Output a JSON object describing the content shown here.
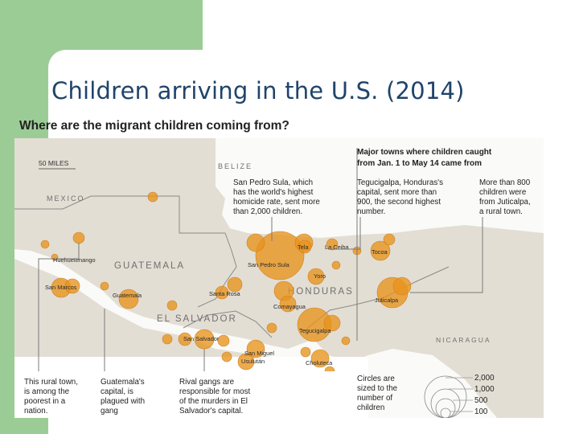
{
  "slide": {
    "title": "Children arriving in the U.S. (2014)"
  },
  "figure": {
    "heading": "Where are the migrant children coming from?",
    "scale_label": "50 MILES",
    "countries": {
      "belize": "BELIZE",
      "mexico": "MEXICO",
      "guatemala": "GUATEMALA",
      "honduras": "HONDURAS",
      "el_salvador": "EL SALVADOR",
      "nicaragua": "NICARAGUA"
    },
    "cities": {
      "huehuetenango": "Huehuetenango",
      "san_marcos": "San Marcos",
      "guatemala": "Guatemala",
      "santa_rosa": "Santa Rosa",
      "san_salvador": "San Salvador",
      "usulutan": "Usulután",
      "san_miguel": "San Miguel",
      "tela": "Tela",
      "la_ceiba": "La Ceiba",
      "san_pedro_sula": "San Pedro Sula",
      "yoro": "Yoro",
      "comayagua": "Comayagua",
      "tegucigalpa": "Tegucigalpa",
      "choluteca": "Choluteca",
      "tocoa": "Tocoa",
      "juticalpa": "Juticalpa"
    },
    "major_towns_heading": [
      "Major towns where children caught",
      "from Jan. 1 to May 14 came from"
    ],
    "annotations": {
      "san_pedro_sula": [
        "San Pedro Sula, which",
        "has the world's highest",
        "homicide rate, sent more",
        "than 2,000 children."
      ],
      "tegucigalpa": [
        "Tegucigalpa, Honduras's",
        "capital, sent more than",
        "900, the second highest",
        "number."
      ],
      "juticalpa": [
        "More than 800",
        "children were",
        "from Juticalpa,",
        "a rural town."
      ],
      "huehuetenango": [
        "This rural town,",
        "is among the",
        "poorest in a",
        "nation."
      ],
      "guatemala": [
        "Guatemala's",
        "capital, is",
        "plagued with",
        "gang"
      ],
      "san_salvador": [
        "Rival gangs are",
        "responsible for most",
        "of the murders in El",
        "Salvador's capital."
      ]
    },
    "legend": {
      "caption": [
        "Circles are",
        "sized to the",
        "number of",
        "children"
      ],
      "sizes": [
        "2,000",
        "1,000",
        "500",
        "100"
      ]
    },
    "colors": {
      "bubble": "#e8931c",
      "land": "#e3ded4",
      "sea": "#ffffff",
      "slide_accent": "#9ccc96",
      "title": "#20446a"
    }
  }
}
